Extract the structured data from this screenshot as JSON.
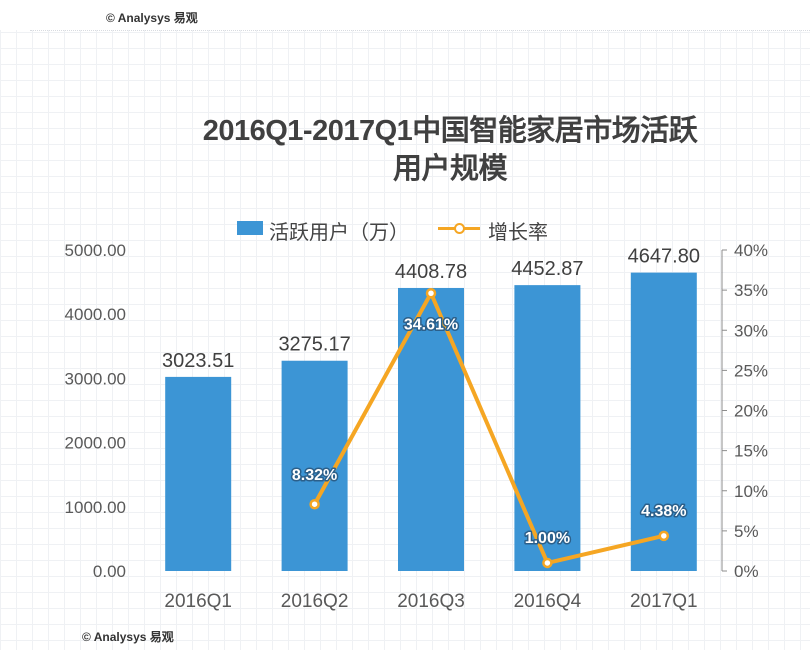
{
  "watermark": {
    "top": "© Analysys 易观",
    "bottom": "© Analysys 易观"
  },
  "chart_data": {
    "type": "bar",
    "title_line1": "2016Q1-2017Q1中国智能家居市场活跃",
    "title_line2": "用户规模",
    "categories": [
      "2016Q1",
      "2016Q2",
      "2016Q3",
      "2016Q4",
      "2017Q1"
    ],
    "series": [
      {
        "name": "活跃用户（万）",
        "type": "bar",
        "axis": "left",
        "values": [
          3023.51,
          3275.17,
          4408.78,
          4452.87,
          4647.8
        ],
        "labels": [
          "3023.51",
          "3275.17",
          "4408.78",
          "4452.87",
          "4647.80"
        ]
      },
      {
        "name": "增长率",
        "type": "line",
        "axis": "right",
        "points": [
          {
            "category": "2016Q2",
            "value": 8.32,
            "label": "8.32%"
          },
          {
            "category": "2016Q3",
            "value": 34.61,
            "label": "34.61%"
          },
          {
            "category": "2016Q4",
            "value": 1.0,
            "label": "1.00%"
          },
          {
            "category": "2017Q1",
            "value": 4.38,
            "label": "4.38%"
          }
        ]
      }
    ],
    "y_left": {
      "min": 0,
      "max": 5000,
      "ticks": [
        0,
        1000,
        2000,
        3000,
        4000,
        5000
      ],
      "tick_labels": [
        "0.00",
        "1000.00",
        "2000.00",
        "3000.00",
        "4000.00",
        "5000.00"
      ]
    },
    "y_right": {
      "min": 0,
      "max": 40,
      "ticks": [
        0,
        5,
        10,
        15,
        20,
        25,
        30,
        35,
        40
      ],
      "tick_labels": [
        "0%",
        "5%",
        "10%",
        "15%",
        "20%",
        "25%",
        "30%",
        "35%",
        "40%"
      ]
    },
    "legend_position": "top",
    "colors": {
      "bar": "#3c95d5",
      "line": "#f5a623",
      "axis_text": "#595959"
    }
  }
}
